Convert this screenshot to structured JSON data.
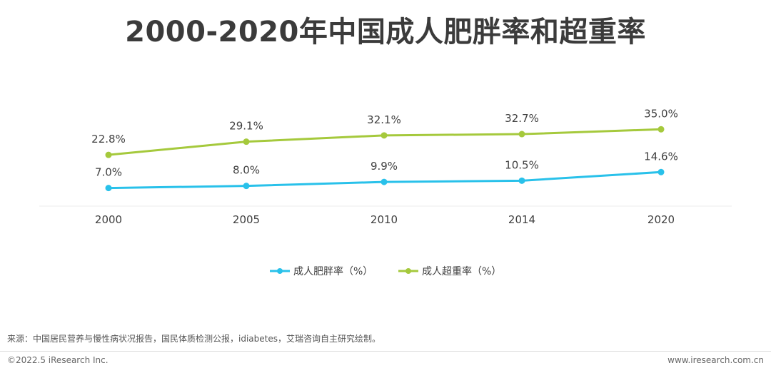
{
  "chart_data": {
    "type": "line",
    "title": "2000-2020年中国成人肥胖率和超重率",
    "categories": [
      "2000",
      "2005",
      "2010",
      "2014",
      "2020"
    ],
    "series": [
      {
        "name": "成人肥胖率（%）",
        "color": "#29c1ea",
        "values": [
          7.0,
          8.0,
          9.9,
          10.5,
          14.6
        ],
        "labels": [
          "7.0%",
          "8.0%",
          "9.9%",
          "10.5%",
          "14.6%"
        ]
      },
      {
        "name": "成人超重率（%）",
        "color": "#a5c93c",
        "values": [
          22.8,
          29.1,
          32.1,
          32.7,
          35.0
        ],
        "labels": [
          "22.8%",
          "29.1%",
          "32.1%",
          "32.7%",
          "35.0%"
        ]
      }
    ],
    "xlabel": "",
    "ylabel": "",
    "ylim": [
      0,
      38
    ],
    "legend_position": "bottom-center",
    "grid": false
  },
  "footer": {
    "source": "来源：中国居民营养与慢性病状况报告，国民体质检测公报，idiabetes，艾瑞咨询自主研究绘制。",
    "copyright": "©2022.5 iResearch Inc.",
    "website": "www.iresearch.com.cn"
  }
}
